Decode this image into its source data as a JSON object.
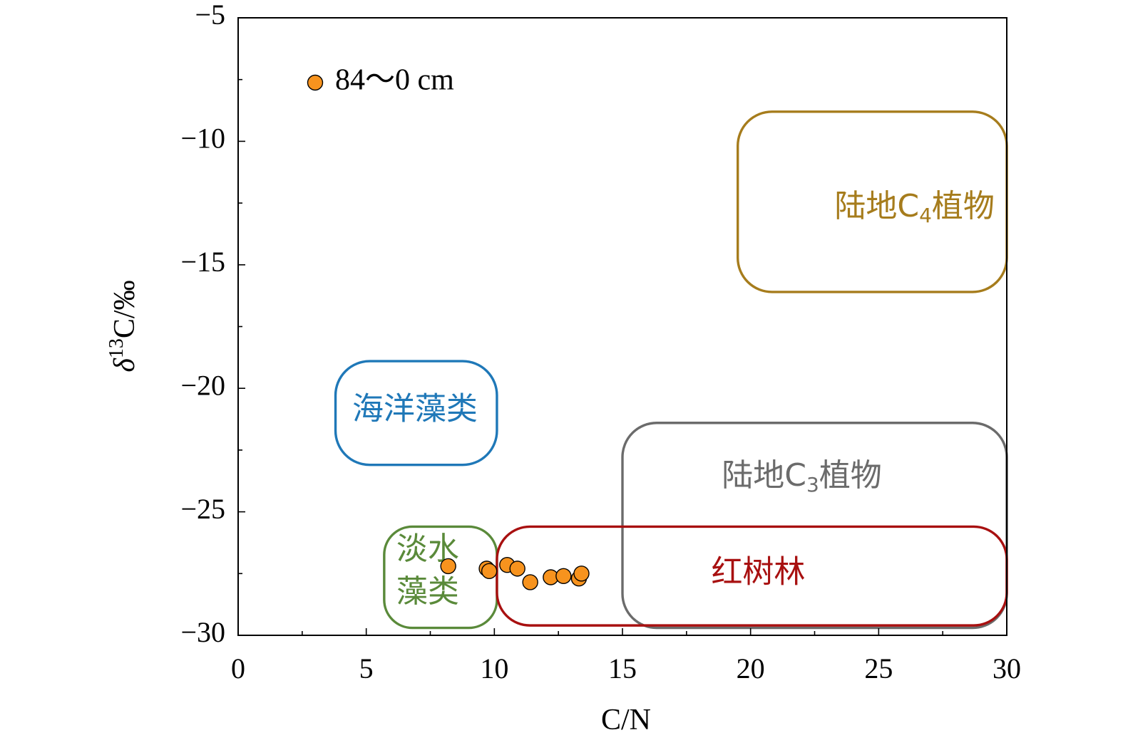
{
  "chart_data": {
    "type": "scatter",
    "xlabel": "C/N",
    "ylabel": {
      "prefix": "δ",
      "sup": "13",
      "suffix": "C/‰"
    },
    "xlim": [
      0,
      30
    ],
    "ylim": [
      -30,
      -5
    ],
    "x_ticks": [
      0,
      5,
      10,
      15,
      20,
      25,
      30
    ],
    "y_ticks": [
      -30,
      -25,
      -20,
      -15,
      -10,
      -5
    ],
    "grid": false,
    "legend": {
      "placement": "top-left",
      "entries": [
        {
          "label": "84～0 cm",
          "color": "#f7931e"
        }
      ]
    },
    "series": [
      {
        "name": "84～0 cm",
        "color": "#f7931e",
        "points": [
          {
            "x": 8.2,
            "y": -27.2
          },
          {
            "x": 9.7,
            "y": -27.3
          },
          {
            "x": 9.8,
            "y": -27.4
          },
          {
            "x": 10.5,
            "y": -27.15
          },
          {
            "x": 10.9,
            "y": -27.3
          },
          {
            "x": 11.4,
            "y": -27.85
          },
          {
            "x": 12.2,
            "y": -27.65
          },
          {
            "x": 12.7,
            "y": -27.6
          },
          {
            "x": 13.3,
            "y": -27.7
          },
          {
            "x": 13.4,
            "y": -27.5
          }
        ]
      }
    ],
    "regions": [
      {
        "id": "marine-algae",
        "label": [
          "海洋藻类"
        ],
        "color": "#1f78b8",
        "x_range": [
          3.8,
          10.1
        ],
        "y_range": [
          -23.1,
          -18.9
        ],
        "label_at": [
          6.9,
          -20.9
        ]
      },
      {
        "id": "freshwater-algae",
        "label": [
          "淡水",
          "藻类"
        ],
        "color": "#5a8a3a",
        "x_range": [
          5.7,
          10.1
        ],
        "y_range": [
          -29.7,
          -25.6
        ],
        "label_at": [
          7.4,
          -27.2
        ]
      },
      {
        "id": "terrestrial-c4",
        "label": [
          "陆地C",
          "4",
          "植物"
        ],
        "color": "#a67c1c",
        "x_range": [
          19.5,
          30
        ],
        "y_range": [
          -16.1,
          -8.8
        ],
        "label_at": [
          26.4,
          -12.7
        ]
      },
      {
        "id": "terrestrial-c3",
        "label": [
          "陆地C",
          "3",
          "植物"
        ],
        "color": "#6b6b6b",
        "x_range": [
          15.0,
          30
        ],
        "y_range": [
          -29.7,
          -21.4
        ],
        "label_at": [
          22.0,
          -23.6
        ]
      },
      {
        "id": "mangrove",
        "label": [
          "红树林"
        ],
        "color": "#a81010",
        "x_range": [
          10.1,
          30
        ],
        "y_range": [
          -29.6,
          -25.6
        ],
        "label_at": [
          20.3,
          -27.5
        ]
      }
    ]
  }
}
